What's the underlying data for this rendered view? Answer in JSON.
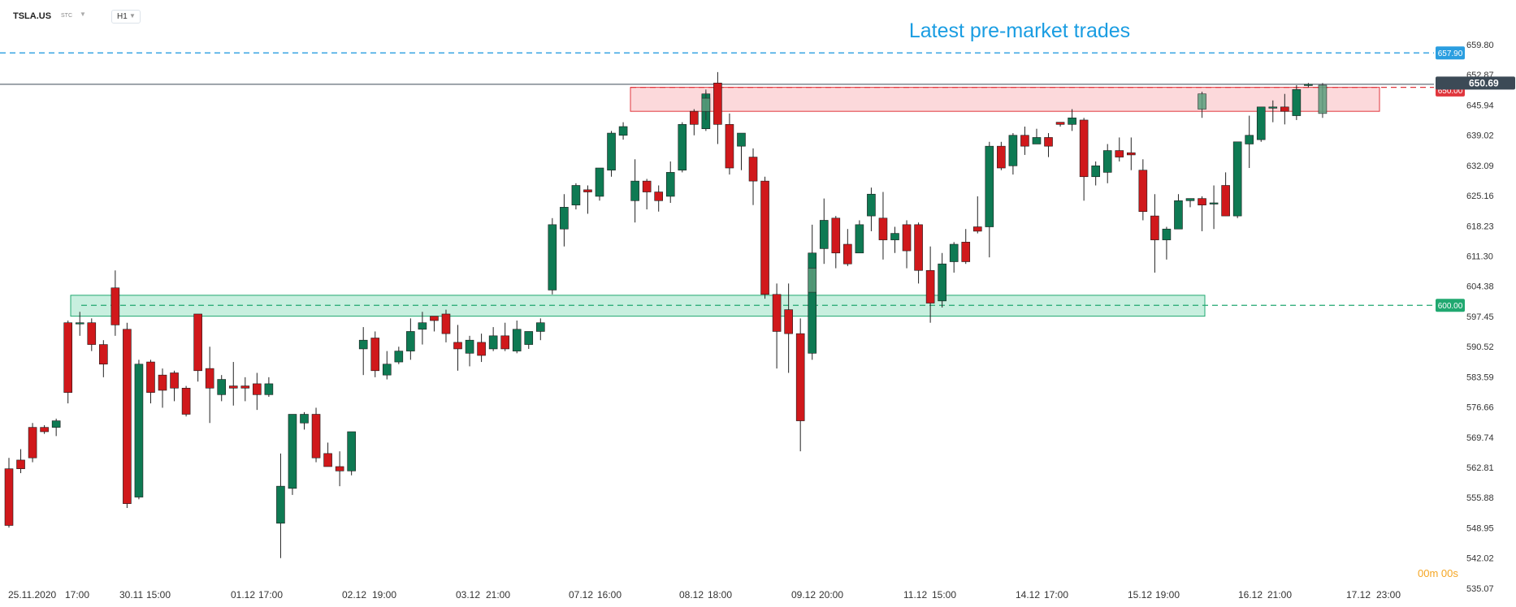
{
  "toolbar": {
    "symbol": "TSLA.US",
    "type_label": "STC",
    "timeframe": "H1"
  },
  "annotation": "Latest pre-market trades",
  "countdown": "00m 00s",
  "colors": {
    "up": "#0e7a53",
    "down": "#d0181b",
    "resistance_fill": "#fcd9db",
    "resistance_border": "#e0363d",
    "support_fill": "#c8efdf",
    "support_border": "#20a870",
    "target_line": "#2a9ee0",
    "price_tag": "#3c4a56",
    "annotation": "#1a9de2",
    "premarket": "#5a9e7c"
  },
  "chart_data": {
    "type": "candlestick",
    "symbol": "TSLA.US",
    "timeframe": "H1",
    "ylim": [
      535.07,
      659.8
    ],
    "y_ticks": [
      "659.80",
      "652.87",
      "645.94",
      "639.02",
      "632.09",
      "625.16",
      "618.23",
      "611.30",
      "604.38",
      "597.45",
      "590.52",
      "583.59",
      "576.66",
      "569.74",
      "562.81",
      "555.88",
      "548.95",
      "542.02",
      "535.07"
    ],
    "x_labels": [
      "25.11.2020",
      "17:00",
      "30.11",
      "15:00",
      "01.12",
      "17:00",
      "02.12",
      "19:00",
      "03.12",
      "21:00",
      "07.12",
      "16:00",
      "08.12",
      "18:00",
      "09.12",
      "20:00",
      "11.12",
      "15:00",
      "14.12",
      "17:00",
      "15.12",
      "19:00",
      "16.12",
      "21:00",
      "17.12",
      "23:00"
    ],
    "levels": [
      {
        "label": "657.90",
        "value": 657.9,
        "kind": "target"
      },
      {
        "label": "650.00",
        "value": 650.0,
        "kind": "resistance"
      },
      {
        "label": "650.69",
        "value": 650.69,
        "kind": "last_price"
      },
      {
        "label": "600.00",
        "value": 600.0,
        "kind": "support"
      }
    ],
    "zones": [
      {
        "name": "resistance",
        "from": 644.5,
        "to": 650.0
      },
      {
        "name": "support",
        "from": 597.5,
        "to": 602.3
      }
    ],
    "candles": [
      [
        562.5,
        549.5,
        565,
        549
      ],
      [
        564.5,
        562.5,
        567,
        561.5
      ],
      [
        572,
        565,
        573,
        564
      ],
      [
        572,
        571,
        572.5,
        570.5
      ],
      [
        572,
        573.5,
        574,
        570
      ],
      [
        596,
        580,
        596.5,
        577.5
      ],
      [
        596,
        596,
        598.5,
        593
      ],
      [
        596,
        591,
        597,
        589.5
      ],
      [
        591,
        586.5,
        592,
        583.5
      ],
      [
        604,
        595.5,
        608,
        593
      ],
      [
        594.5,
        554.5,
        596,
        553.5
      ],
      [
        556,
        586.5,
        587.5,
        555.5
      ],
      [
        587,
        580,
        587.5,
        577.5
      ],
      [
        584,
        580.5,
        585.5,
        576.5
      ],
      [
        584.5,
        581,
        585,
        578
      ],
      [
        581,
        575,
        581.5,
        574.5
      ],
      [
        598,
        585,
        598,
        582.5
      ],
      [
        585.5,
        581,
        590.5,
        573
      ],
      [
        579.5,
        583,
        584,
        578
      ],
      [
        581.5,
        581,
        587,
        577
      ],
      [
        581.5,
        581,
        583.5,
        578
      ],
      [
        582,
        579.5,
        584.5,
        576
      ],
      [
        579.5,
        582,
        583.5,
        579
      ],
      [
        550,
        558.5,
        566,
        542
      ],
      [
        558,
        575,
        572,
        556.5
      ],
      [
        573,
        575,
        575.5,
        571.5
      ],
      [
        575,
        565,
        576.5,
        564
      ],
      [
        566,
        563,
        568.5,
        563
      ],
      [
        563,
        562,
        566.5,
        558.5
      ],
      [
        562,
        571,
        570.5,
        561
      ],
      [
        590,
        592,
        595,
        584
      ],
      [
        592.5,
        585,
        594,
        583.5
      ],
      [
        584,
        586.5,
        589.5,
        583
      ],
      [
        587,
        589.5,
        590.5,
        586.5
      ],
      [
        589.5,
        594,
        597,
        587.5
      ],
      [
        594.5,
        596,
        598.5,
        591
      ],
      [
        597.5,
        596.5,
        597.5,
        594
      ],
      [
        598,
        593.5,
        599,
        591.5
      ],
      [
        591.5,
        590,
        595.5,
        585
      ],
      [
        589,
        592,
        593,
        586
      ],
      [
        591.5,
        588.5,
        593.5,
        587
      ],
      [
        590,
        593,
        595,
        589.5
      ],
      [
        593,
        590,
        596,
        589.5
      ],
      [
        589.5,
        594.5,
        596.5,
        589
      ],
      [
        591,
        594,
        594,
        590
      ],
      [
        594,
        596,
        597,
        592
      ],
      [
        603.5,
        618.5,
        620,
        602.5
      ],
      [
        617.5,
        622.5,
        625.5,
        613.5
      ],
      [
        623,
        627.5,
        628,
        622
      ],
      [
        626.5,
        626,
        627.5,
        621
      ],
      [
        625,
        631.5,
        631,
        624
      ],
      [
        631,
        639.5,
        640,
        629.5
      ],
      [
        639,
        641,
        642,
        638
      ],
      [
        624,
        628.5,
        633.5,
        619
      ],
      [
        628.5,
        626,
        629,
        622
      ],
      [
        626,
        624,
        627.5,
        621.5
      ],
      [
        625,
        630.5,
        633,
        623.5
      ],
      [
        631,
        641.5,
        642,
        630.5
      ],
      [
        644.5,
        641.5,
        645,
        639
      ],
      [
        640.5,
        648.5,
        649,
        640
      ],
      [
        651,
        641.5,
        653.5,
        637
      ],
      [
        641.5,
        631.5,
        644,
        630
      ],
      [
        636.5,
        639.5,
        638,
        631
      ],
      [
        634,
        628.5,
        636,
        623
      ],
      [
        628.5,
        602.5,
        629.5,
        601.5
      ],
      [
        602.5,
        594,
        605,
        585.5
      ],
      [
        599,
        593.5,
        605,
        584.5
      ],
      [
        593.5,
        573.5,
        597,
        566.5
      ],
      [
        589,
        612,
        618.5,
        587.5
      ],
      [
        613,
        619.5,
        624.5,
        609.5
      ],
      [
        620,
        612,
        620.5,
        608.5
      ],
      [
        614,
        609.5,
        617.5,
        609
      ],
      [
        612,
        618.5,
        619.5,
        612.5
      ],
      [
        620.5,
        625.5,
        627,
        617
      ],
      [
        620,
        615,
        626,
        610.5
      ],
      [
        615,
        616.5,
        618,
        612
      ],
      [
        618.5,
        612.5,
        619.5,
        608.5
      ],
      [
        618.5,
        608,
        619,
        605
      ],
      [
        608,
        600.5,
        613.5,
        596
      ],
      [
        601,
        609.5,
        612,
        599.5
      ],
      [
        610,
        614,
        614.5,
        607.5
      ],
      [
        614.5,
        610,
        617.5,
        609.5
      ],
      [
        618,
        617,
        625,
        616.5
      ],
      [
        618,
        636.5,
        637.5,
        611
      ],
      [
        636.5,
        631.5,
        637.5,
        631
      ],
      [
        632,
        639,
        639.5,
        630
      ],
      [
        639,
        636.5,
        641,
        634.5
      ],
      [
        637,
        638.5,
        640.5,
        637
      ],
      [
        638.5,
        636.5,
        639.5,
        634
      ],
      [
        642,
        641.5,
        641.5,
        641
      ],
      [
        641.5,
        643,
        645,
        640
      ],
      [
        642.5,
        629.5,
        643,
        624
      ],
      [
        629.5,
        632,
        633,
        627.5
      ],
      [
        630.5,
        635.5,
        637,
        628
      ],
      [
        635.5,
        634,
        638.5,
        633
      ],
      [
        635,
        634.5,
        638.5,
        631
      ],
      [
        631,
        621.5,
        633.5,
        619.5
      ],
      [
        620.5,
        615,
        625.5,
        607.5
      ],
      [
        615,
        617.5,
        618,
        610.5
      ],
      [
        617.5,
        624,
        625.5,
        618.5
      ],
      [
        624,
        624.5,
        624.5,
        622.5
      ],
      [
        624.5,
        623,
        625,
        617
      ],
      [
        623.5,
        623.5,
        627.5,
        617.5
      ],
      [
        627.5,
        620.5,
        630.5,
        620.5
      ],
      [
        620.5,
        637.5,
        637.5,
        620
      ],
      [
        637,
        639,
        643.5,
        631.5
      ],
      [
        638,
        645.5,
        645.5,
        637.5
      ],
      [
        645.5,
        645.5,
        647,
        642
      ],
      [
        645.5,
        644.5,
        648.5,
        641.5
      ],
      [
        643.5,
        649.5,
        650.5,
        642.5
      ],
      [
        650.5,
        650.69,
        651,
        650
      ]
    ],
    "premarket_candles": [
      [
        644.5,
        647.5,
        649.5,
        642.5
      ],
      [
        645,
        648.5,
        649,
        643
      ],
      [
        603,
        608.5,
        608.5,
        603
      ],
      [
        644,
        650.5,
        651,
        643
      ]
    ]
  }
}
